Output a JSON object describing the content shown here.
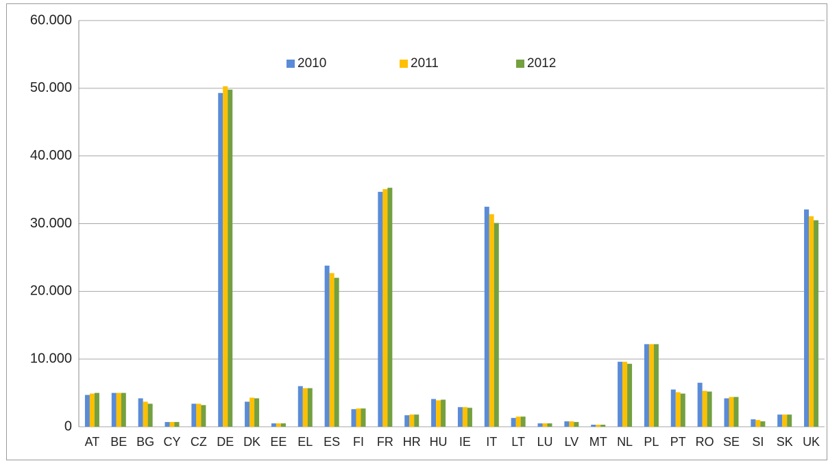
{
  "chart_data": {
    "type": "bar",
    "categories": [
      "AT",
      "BE",
      "BG",
      "CY",
      "CZ",
      "DE",
      "DK",
      "EE",
      "EL",
      "ES",
      "FI",
      "FR",
      "HR",
      "HU",
      "IE",
      "IT",
      "LT",
      "LU",
      "LV",
      "MT",
      "NL",
      "PL",
      "PT",
      "RO",
      "SE",
      "SI",
      "SK",
      "UK"
    ],
    "series": [
      {
        "name": "2010",
        "color": "#5a8bd6",
        "values": [
          4700,
          5000,
          4200,
          700,
          3400,
          49300,
          3700,
          500,
          6000,
          23800,
          2600,
          34700,
          1700,
          4100,
          2900,
          32500,
          1300,
          500,
          800,
          300,
          9600,
          12200,
          5500,
          6500,
          4200,
          1100,
          1800,
          32100
        ]
      },
      {
        "name": "2011",
        "color": "#ffc000",
        "values": [
          4900,
          5000,
          3700,
          700,
          3400,
          50300,
          4300,
          500,
          5700,
          22700,
          2700,
          35100,
          1800,
          3900,
          2900,
          31400,
          1500,
          500,
          800,
          300,
          9600,
          12200,
          5100,
          5300,
          4400,
          1000,
          1800,
          31100
        ]
      },
      {
        "name": "2012",
        "color": "#74a03f",
        "values": [
          5000,
          5000,
          3400,
          700,
          3200,
          49800,
          4200,
          500,
          5700,
          22000,
          2700,
          35300,
          1800,
          4000,
          2800,
          30100,
          1500,
          500,
          700,
          300,
          9300,
          12200,
          4900,
          5200,
          4400,
          800,
          1800,
          30500
        ]
      }
    ],
    "ylim": [
      0,
      60000
    ],
    "yticks": [
      0,
      {
        "value": 10000,
        "label": "10.000"
      },
      {
        "value": 20000,
        "label": "20.000"
      },
      {
        "value": 30000,
        "label": "30.000"
      },
      {
        "value": 40000,
        "label": "40.000"
      },
      {
        "value": 50000,
        "label": "50.000"
      },
      {
        "value": 60000,
        "label": "60.000"
      }
    ],
    "grid": true,
    "legend": "top"
  }
}
